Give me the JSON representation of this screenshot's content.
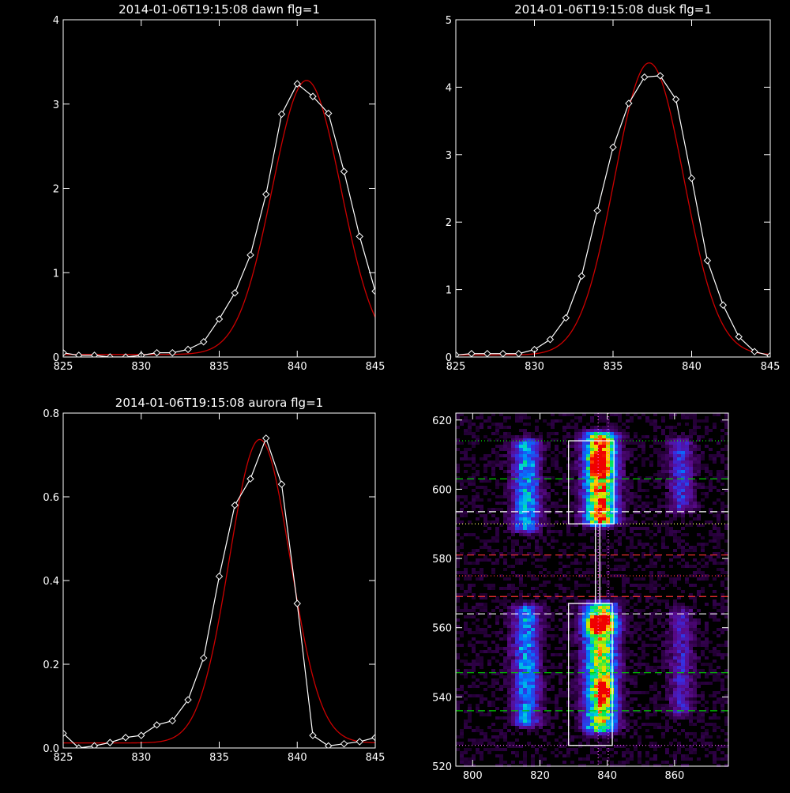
{
  "chart_data": [
    {
      "type": "line",
      "title": "2014-01-06T19:15:08 dawn flg=1",
      "xlim": [
        825,
        845
      ],
      "ylim": [
        0,
        4
      ],
      "xticks": [
        "825",
        "830",
        "835",
        "840",
        "845"
      ],
      "yticks": [
        "0",
        "1",
        "2",
        "3",
        "4"
      ],
      "series": [
        {
          "kind": "data",
          "color": "#ffffff",
          "markers": "diamond",
          "x": [
            825,
            826,
            827,
            828,
            829,
            830,
            831,
            832,
            833,
            834,
            835,
            836,
            837,
            838,
            839,
            840,
            841,
            842,
            843,
            844,
            845
          ],
          "y": [
            0.05,
            0.02,
            0.02,
            0.0,
            0.0,
            0.02,
            0.05,
            0.05,
            0.09,
            0.18,
            0.45,
            0.76,
            1.21,
            1.93,
            2.88,
            3.24,
            3.09,
            2.89,
            2.2,
            1.43,
            0.78
          ]
        },
        {
          "kind": "fit",
          "color": "#cc0000",
          "gauss": {
            "amp": 3.25,
            "mu": 840.6,
            "sigma": 2.2,
            "base": 0.03
          }
        }
      ]
    },
    {
      "type": "line",
      "title": "2014-01-06T19:15:08 dusk flg=1",
      "xlim": [
        825,
        845
      ],
      "ylim": [
        0,
        5
      ],
      "xticks": [
        "825",
        "830",
        "835",
        "840",
        "845"
      ],
      "yticks": [
        "0",
        "1",
        "2",
        "3",
        "4",
        "5"
      ],
      "series": [
        {
          "kind": "data",
          "color": "#ffffff",
          "markers": "diamond",
          "x": [
            825,
            826,
            827,
            828,
            829,
            830,
            831,
            832,
            833,
            834,
            835,
            836,
            837,
            838,
            839,
            840,
            841,
            842,
            843,
            844,
            845
          ],
          "y": [
            0.03,
            0.05,
            0.05,
            0.05,
            0.05,
            0.11,
            0.26,
            0.58,
            1.2,
            2.17,
            3.11,
            3.76,
            4.15,
            4.17,
            3.82,
            2.65,
            1.43,
            0.77,
            0.3,
            0.08,
            0.02
          ]
        },
        {
          "kind": "fit",
          "color": "#cc0000",
          "gauss": {
            "amp": 4.33,
            "mu": 837.3,
            "sigma": 2.2,
            "base": 0.03
          }
        }
      ]
    },
    {
      "type": "line",
      "title": "2014-01-06T19:15:08 aurora flg=1",
      "xlim": [
        825,
        845
      ],
      "ylim": [
        0,
        0.8
      ],
      "xticks": [
        "825",
        "830",
        "835",
        "840",
        "845"
      ],
      "yticks": [
        "0.0",
        "0.2",
        "0.4",
        "0.6",
        "0.8"
      ],
      "series": [
        {
          "kind": "data",
          "color": "#ffffff",
          "markers": "diamond",
          "x": [
            825,
            826,
            827,
            828,
            829,
            830,
            831,
            832,
            833,
            834,
            835,
            836,
            837,
            838,
            839,
            840,
            841,
            842,
            843,
            844,
            845
          ],
          "y": [
            0.035,
            0.0,
            0.005,
            0.013,
            0.025,
            0.03,
            0.055,
            0.065,
            0.115,
            0.215,
            0.41,
            0.58,
            0.643,
            0.74,
            0.63,
            0.345,
            0.03,
            0.005,
            0.01,
            0.015,
            0.025
          ]
        },
        {
          "kind": "fit",
          "color": "#cc0000",
          "gauss": {
            "amp": 0.725,
            "mu": 837.6,
            "sigma": 1.95,
            "base": 0.012
          }
        }
      ]
    },
    {
      "type": "heatmap",
      "title": "",
      "xlim": [
        795,
        876
      ],
      "ylim": [
        520,
        622
      ],
      "xticks": [
        "800",
        "820",
        "840",
        "860"
      ],
      "yticks": [
        "520",
        "540",
        "560",
        "580",
        "600",
        "620"
      ],
      "bands": [
        {
          "x": 816,
          "halfwidth": 2.8,
          "ranges": [
            [
              589,
              613,
              0.45
            ],
            [
              533,
              565,
              0.42
            ]
          ]
        },
        {
          "x": 838,
          "halfwidth": 3.3,
          "ranges": [
            [
              591,
              615,
              0.85
            ],
            [
              531,
              566,
              0.72
            ],
            [
              560,
              562,
              0.5
            ]
          ]
        },
        {
          "x": 862,
          "halfwidth": 2.5,
          "ranges": [
            [
              595,
              613,
              0.28
            ],
            [
              536,
              564,
              0.22
            ]
          ]
        }
      ],
      "hotspots": [
        {
          "x": 837.5,
          "y": 607.5,
          "value": 1.0
        },
        {
          "x": 839.5,
          "y": 542,
          "value": 0.85
        }
      ],
      "hlines": [
        {
          "y": 614,
          "color": "#00ff00",
          "style": "dotted"
        },
        {
          "y": 603,
          "color": "#00cc00",
          "style": "dashed"
        },
        {
          "y": 593.5,
          "color": "#ffffff",
          "style": "dashed"
        },
        {
          "y": 590,
          "color": "#ffff66",
          "style": "dotted"
        },
        {
          "y": 581,
          "color": "#ff3333",
          "style": "dashed"
        },
        {
          "y": 575,
          "color": "#ff3333",
          "style": "dotted"
        },
        {
          "y": 569,
          "color": "#ff3333",
          "style": "dashed"
        },
        {
          "y": 564,
          "color": "#ffffff",
          "style": "dashed"
        },
        {
          "y": 547,
          "color": "#00cc00",
          "style": "dashed"
        },
        {
          "y": 536,
          "color": "#00cc00",
          "style": "dashed"
        },
        {
          "y": 526,
          "color": "#ff66ff",
          "style": "dotted"
        }
      ],
      "vlines": [
        {
          "x": 837.3,
          "color": "#ff66ff",
          "style": "dotted"
        },
        {
          "x": 840.3,
          "color": "#ff66ff",
          "style": "dotted"
        }
      ],
      "boxes": [
        {
          "x0": 828.5,
          "x1": 841.5,
          "y0": 526,
          "y1": 567,
          "color": "#ffffff"
        },
        {
          "x0": 828.5,
          "x1": 842,
          "y0": 590,
          "y1": 614,
          "color": "#ffffff"
        },
        {
          "x0": 836.5,
          "x1": 837.8,
          "y0": 567,
          "y1": 590,
          "color": "#ffffff"
        }
      ]
    }
  ]
}
